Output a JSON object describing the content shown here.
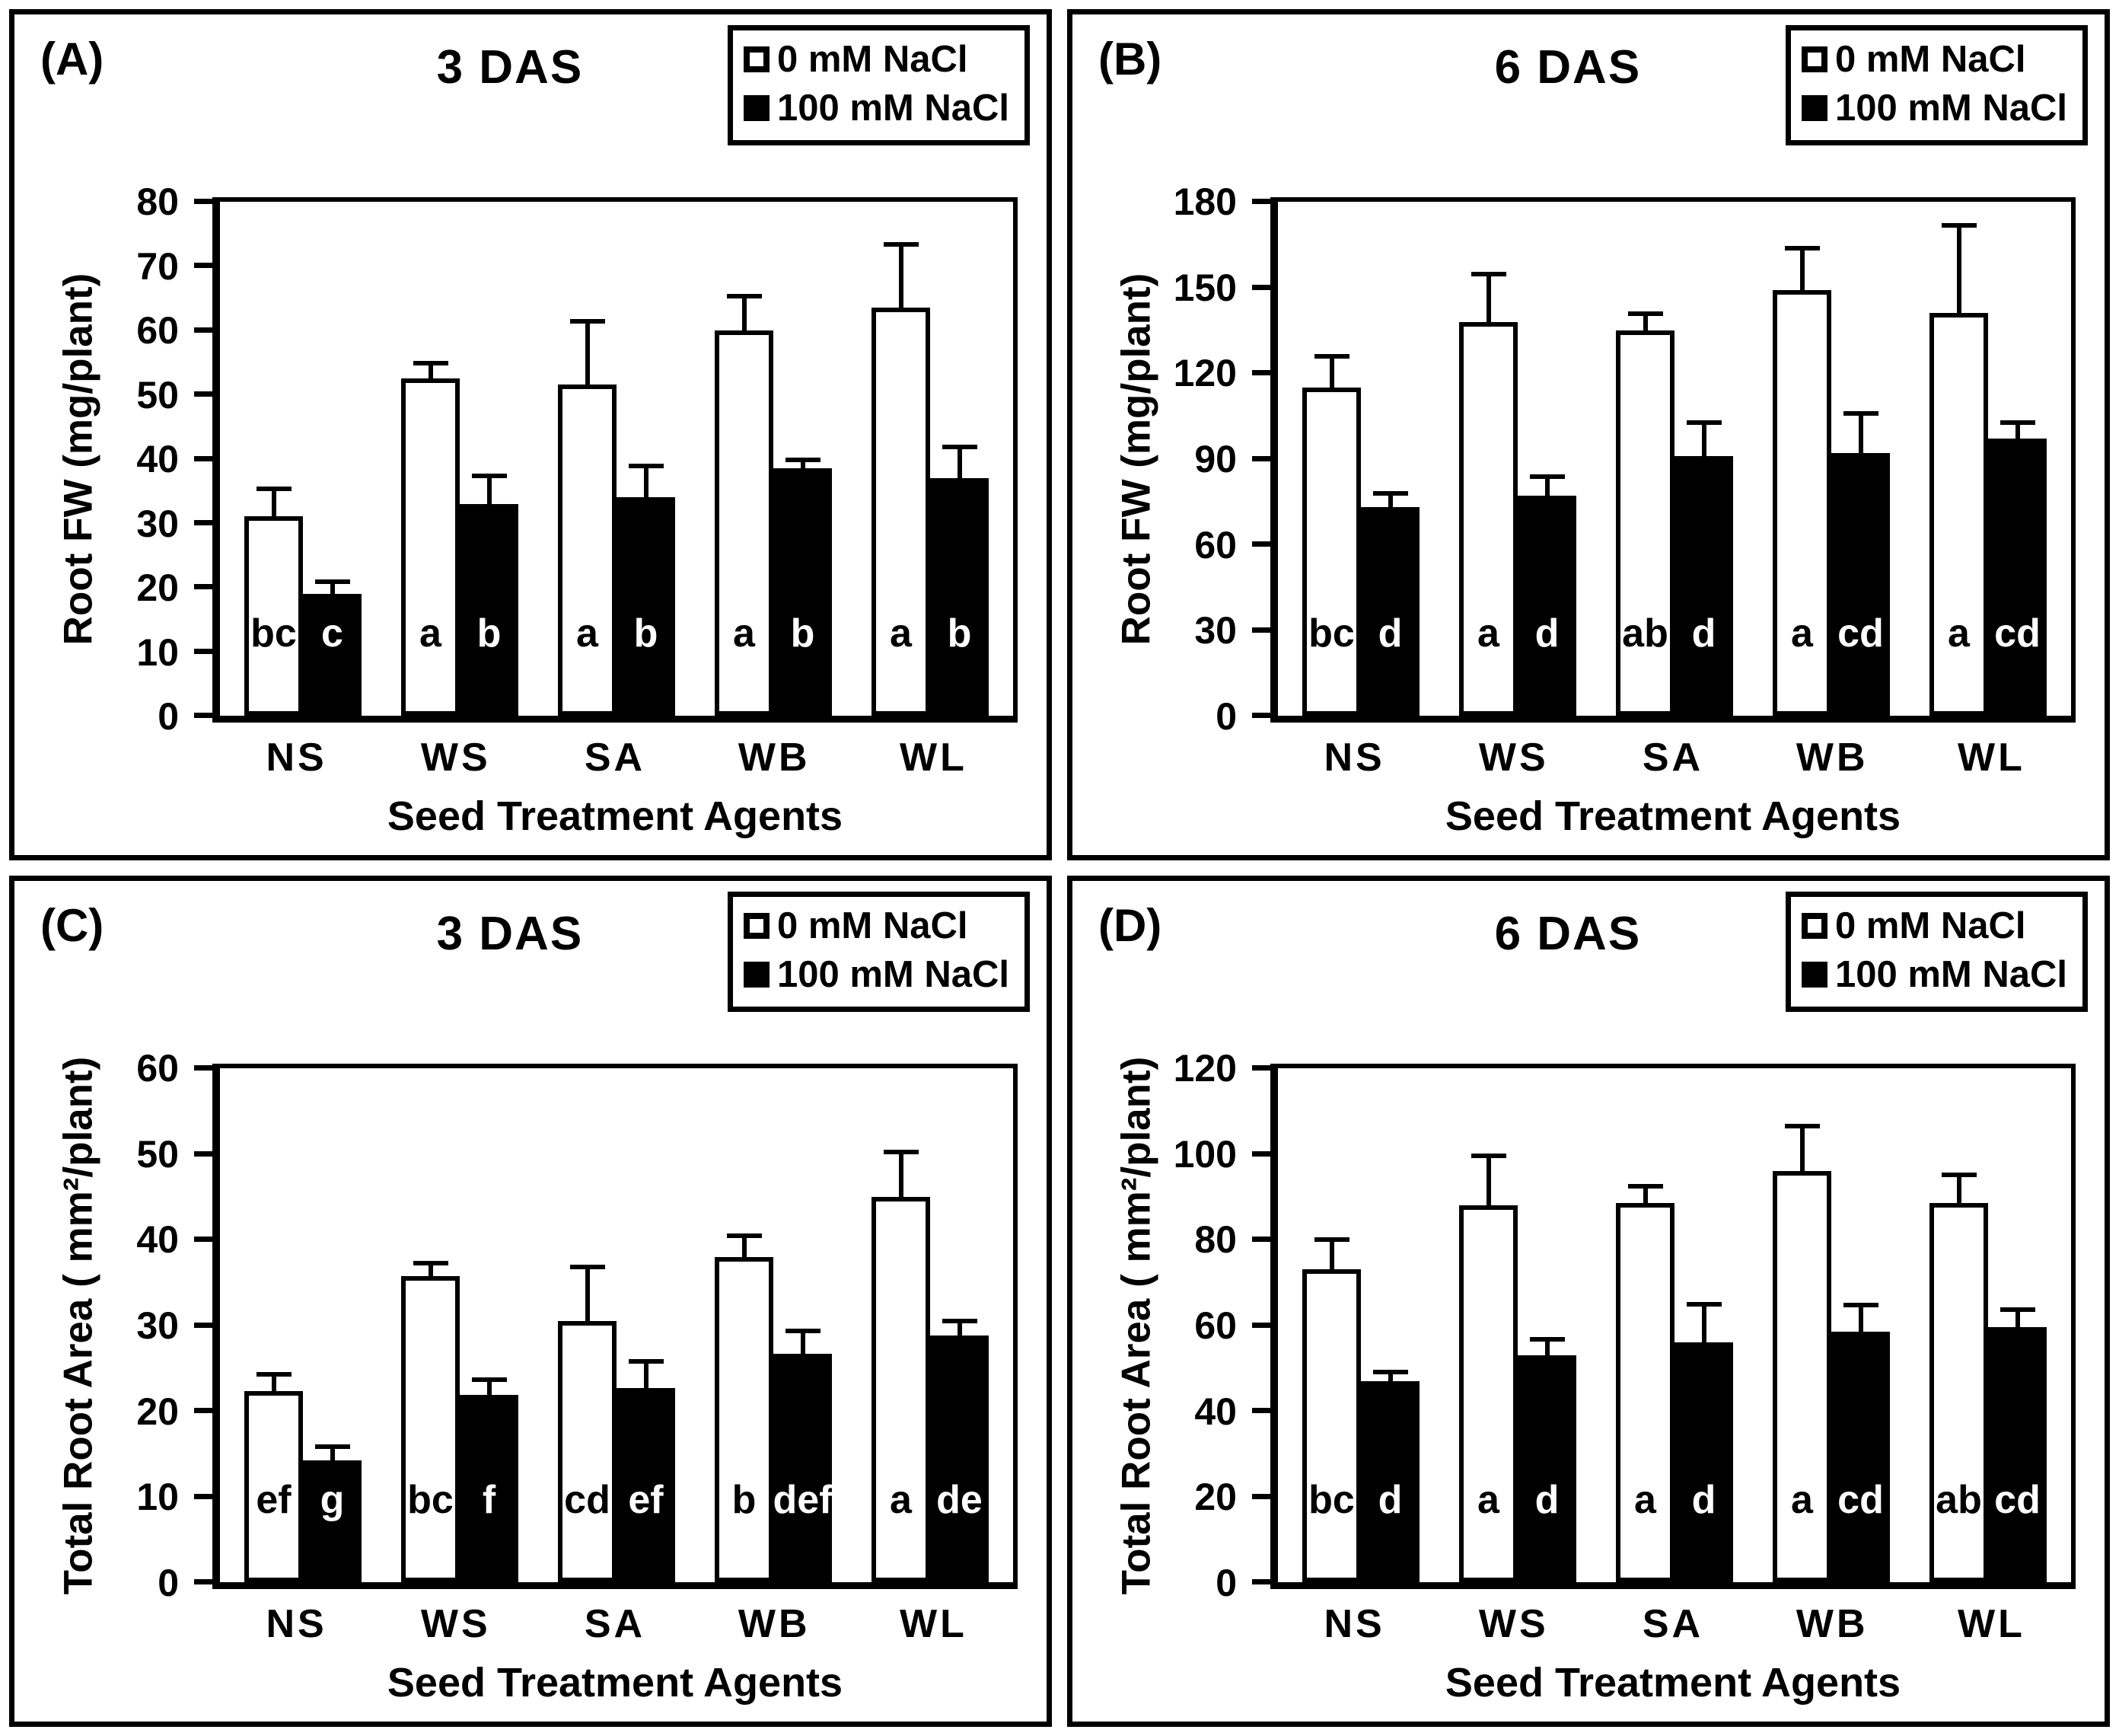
{
  "chart_data": [
    {
      "panel": "(A)",
      "type": "bar",
      "title": "3 DAS",
      "xlabel": "Seed Treatment Agents",
      "ylabel": "Root FW (mg/plant)",
      "categories": [
        "NS",
        "WS",
        "SA",
        "WB",
        "WL"
      ],
      "ylim": [
        0,
        80
      ],
      "yticks": [
        0,
        10,
        20,
        30,
        40,
        50,
        60,
        70,
        80
      ],
      "grid": "off",
      "legend_position": "top-right",
      "series": [
        {
          "name": "0 mM NaCl",
          "fill": "#FFFFFF",
          "values": [
            31,
            52.5,
            51.5,
            60,
            63.5
          ],
          "errors": [
            4,
            2,
            9.5,
            5,
            9.5
          ],
          "letters": [
            "bc",
            "a",
            "a",
            "a",
            "a"
          ]
        },
        {
          "name": "100 mM NaCl",
          "fill": "#000000",
          "values": [
            19,
            33,
            34,
            38.5,
            37
          ],
          "errors": [
            1.5,
            4,
            4.5,
            1,
            4.5
          ],
          "letters": [
            "c",
            "b",
            "b",
            "b",
            "b"
          ]
        }
      ]
    },
    {
      "panel": "(B)",
      "type": "bar",
      "title": "6 DAS",
      "xlabel": "Seed Treatment Agents",
      "ylabel": "Root FW (mg/plant)",
      "categories": [
        "NS",
        "WS",
        "SA",
        "WB",
        "WL"
      ],
      "ylim": [
        0,
        180
      ],
      "yticks": [
        0,
        30,
        60,
        90,
        120,
        150,
        180
      ],
      "grid": "off",
      "legend_position": "top-right",
      "series": [
        {
          "name": "0 mM NaCl",
          "fill": "#FFFFFF",
          "values": [
            115,
            138,
            135,
            149,
            141
          ],
          "errors": [
            10,
            16,
            5,
            14,
            30
          ],
          "letters": [
            "bc",
            "a",
            "ab",
            "a",
            "a"
          ]
        },
        {
          "name": "100 mM NaCl",
          "fill": "#000000",
          "values": [
            73,
            77,
            91,
            92,
            97
          ],
          "errors": [
            4,
            6,
            11,
            13,
            5
          ],
          "letters": [
            "d",
            "d",
            "d",
            "cd",
            "cd"
          ]
        }
      ]
    },
    {
      "panel": "(C)",
      "type": "bar",
      "title": "3 DAS",
      "xlabel": "Seed Treatment Agents",
      "ylabel": "Total Root Area ( mm²/plant)",
      "categories": [
        "NS",
        "WS",
        "SA",
        "WB",
        "WL"
      ],
      "ylim": [
        0,
        60
      ],
      "yticks": [
        0,
        10,
        20,
        30,
        40,
        50,
        60
      ],
      "grid": "off",
      "legend_position": "top-right",
      "series": [
        {
          "name": "0 mM NaCl",
          "fill": "#FFFFFF",
          "values": [
            22.3,
            35.7,
            30.5,
            38,
            45
          ],
          "errors": [
            1.7,
            1.3,
            6,
            2.2,
            5
          ],
          "letters": [
            "ef",
            "bc",
            "cd",
            "b",
            "a"
          ]
        },
        {
          "name": "100 mM NaCl",
          "fill": "#000000",
          "values": [
            14.2,
            21.9,
            22.7,
            26.7,
            28.8
          ],
          "errors": [
            1.4,
            1.5,
            2.8,
            2.4,
            1.4
          ],
          "letters": [
            "g",
            "f",
            "ef",
            "def",
            "de"
          ]
        }
      ]
    },
    {
      "panel": "(D)",
      "type": "bar",
      "title": "6 DAS",
      "xlabel": "Seed Treatment Agents",
      "ylabel": "Total Root Area ( mm²/plant)",
      "categories": [
        "NS",
        "WS",
        "SA",
        "WB",
        "WL"
      ],
      "ylim": [
        0,
        120
      ],
      "yticks": [
        0,
        20,
        40,
        60,
        80,
        100,
        120
      ],
      "grid": "off",
      "legend_position": "top-right",
      "series": [
        {
          "name": "0 mM NaCl",
          "fill": "#FFFFFF",
          "values": [
            73,
            88,
            88.5,
            96,
            88.5
          ],
          "errors": [
            6.5,
            11,
            3.5,
            10,
            6
          ],
          "letters": [
            "bc",
            "a",
            "a",
            "a",
            "ab"
          ]
        },
        {
          "name": "100 mM NaCl",
          "fill": "#000000",
          "values": [
            47,
            53,
            56,
            58.5,
            59.5
          ],
          "errors": [
            1.6,
            3.2,
            8.3,
            5.7,
            3.6
          ],
          "letters": [
            "d",
            "d",
            "d",
            "cd",
            "cd"
          ]
        }
      ]
    }
  ]
}
